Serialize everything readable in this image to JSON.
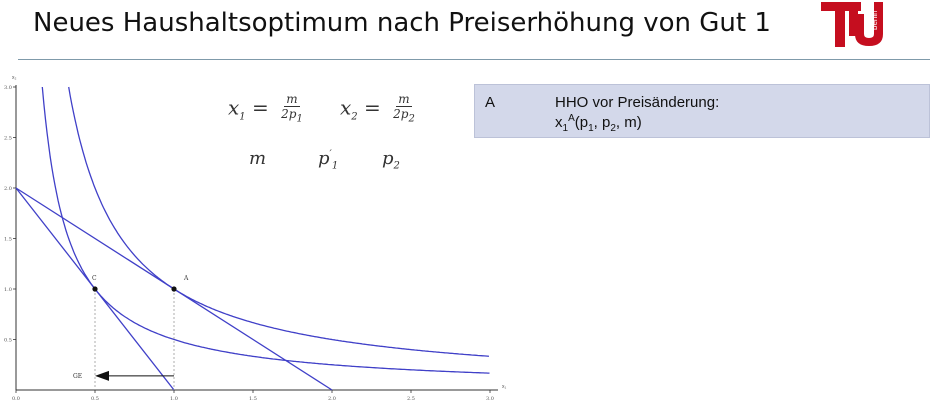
{
  "slide": {
    "title": "Neues Haushaltsoptimum nach Preiserhöhung von Gut 1"
  },
  "logo": {
    "text": "TU",
    "subtext": "berlin",
    "color": "#c50e1f"
  },
  "formulas": {
    "x1": {
      "lhs": "x",
      "lhs_sub": "1",
      "num": "m",
      "den": "2p",
      "den_sub": "1"
    },
    "x2": {
      "lhs": "x",
      "lhs_sub": "2",
      "num": "m",
      "den": "2p",
      "den_sub": "2"
    },
    "params": {
      "m": "m",
      "p1": "p",
      "p1_prime": "′",
      "p1_sub": "1",
      "p2": "p",
      "p2_sub": "2"
    }
  },
  "info_box": {
    "key": "A",
    "heading": "HHO vor Preisänderung:",
    "formula": {
      "x": "x",
      "x_sub": "1",
      "x_sup": "A",
      "args_open": "(p",
      "p1_sub": "1",
      "mid": ", p",
      "p2_sub": "2",
      "args_close": ", m)"
    }
  },
  "chart_data": {
    "type": "line",
    "x_ticks": [
      "0.0",
      "0.5",
      "1.0",
      "1.5",
      "2.0",
      "2.5",
      "3.0"
    ],
    "y_ticks": [
      "0.5",
      "1.0",
      "1.5",
      "2.0",
      "2.5",
      "3.0"
    ],
    "xlim": [
      0,
      3.0
    ],
    "ylim": [
      0,
      3.0
    ],
    "x_axis_label": "x₁",
    "y_axis_label": "x₂",
    "points": [
      {
        "name": "A",
        "x": 1.0,
        "y": 1.0
      },
      {
        "name": "C",
        "x": 0.5,
        "y": 1.0
      }
    ],
    "budget_lines": [
      {
        "x_intercept": 2.0,
        "y_intercept": 2.0
      },
      {
        "x_intercept": 1.0,
        "y_intercept": 2.0
      }
    ],
    "indifference_curves": [
      {
        "k": 1.0
      },
      {
        "k": 0.5
      }
    ],
    "annotations": [
      {
        "label": "GE",
        "from_x": 1.0,
        "to_x": 0.5,
        "y": 0.08
      }
    ],
    "colors": {
      "curves": "#4040c8",
      "dashed": "#999999"
    }
  }
}
